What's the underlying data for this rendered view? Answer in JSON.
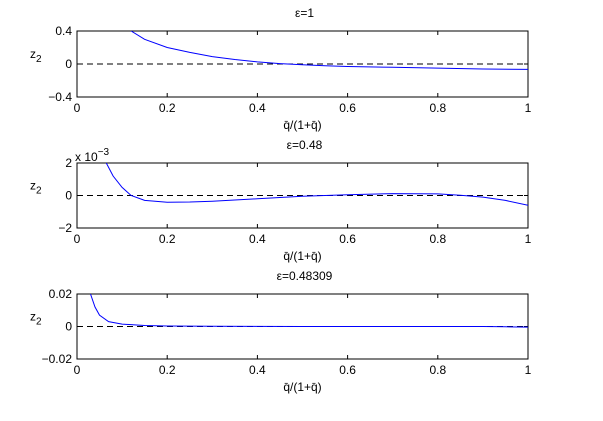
{
  "chart_data": [
    {
      "type": "line",
      "title": "ε=1",
      "xlabel": "q̄/(1+q̄)",
      "ylabel": "z2",
      "xlim": [
        0,
        1
      ],
      "ylim": [
        -0.4,
        0.4
      ],
      "xticks": [
        "0",
        "0.2",
        "0.4",
        "0.6",
        "0.8",
        "1"
      ],
      "yticks": [
        "0.4",
        "0",
        "−0.4"
      ],
      "reference_line": {
        "y": 0,
        "style": "dashed"
      },
      "series": [
        {
          "color": "#0000ff",
          "x": [
            0.12,
            0.15,
            0.2,
            0.25,
            0.3,
            0.35,
            0.4,
            0.45,
            0.5,
            0.55,
            0.6,
            0.7,
            0.8,
            0.9,
            1.0
          ],
          "y": [
            0.4,
            0.3,
            0.2,
            0.14,
            0.09,
            0.055,
            0.025,
            0.005,
            -0.01,
            -0.02,
            -0.03,
            -0.04,
            -0.05,
            -0.06,
            -0.065
          ]
        }
      ]
    },
    {
      "type": "line",
      "title": "ε=0.48",
      "xlabel": "q̄/(1+q̄)",
      "ylabel": "z2",
      "multiplier": "x 10^-3",
      "xlim": [
        0,
        1
      ],
      "ylim": [
        -2,
        2
      ],
      "xticks": [
        "0",
        "0.2",
        "0.4",
        "0.6",
        "0.8",
        "1"
      ],
      "yticks": [
        "2",
        "0",
        "−2"
      ],
      "reference_line": {
        "y": 0,
        "style": "dashed"
      },
      "series": [
        {
          "color": "#0000ff",
          "x": [
            0.065,
            0.08,
            0.1,
            0.12,
            0.15,
            0.2,
            0.25,
            0.3,
            0.4,
            0.5,
            0.6,
            0.7,
            0.8,
            0.85,
            0.9,
            0.95,
            1.0
          ],
          "y": [
            2,
            1.2,
            0.5,
            0.0,
            -0.3,
            -0.42,
            -0.4,
            -0.35,
            -0.2,
            -0.05,
            0.05,
            0.12,
            0.1,
            0.02,
            -0.1,
            -0.3,
            -0.6
          ]
        }
      ]
    },
    {
      "type": "line",
      "title": "ε=0.48309",
      "xlabel": "q̄/(1+q̄)",
      "ylabel": "z2",
      "xlim": [
        0,
        1
      ],
      "ylim": [
        -0.02,
        0.02
      ],
      "xticks": [
        "0",
        "0.2",
        "0.4",
        "0.6",
        "0.8",
        "1"
      ],
      "yticks": [
        "0.02",
        "0",
        "−0.02"
      ],
      "reference_line": {
        "y": 0,
        "style": "dashed"
      },
      "series": [
        {
          "color": "#0000ff",
          "x": [
            0.03,
            0.04,
            0.05,
            0.07,
            0.1,
            0.15,
            0.2,
            0.3,
            0.5,
            0.7,
            0.9,
            0.95,
            1.0
          ],
          "y": [
            0.02,
            0.012,
            0.007,
            0.003,
            0.0015,
            0.0006,
            0.0003,
            0.0001,
            0,
            0,
            0,
            -0.0002,
            -0.0004
          ]
        }
      ]
    }
  ]
}
